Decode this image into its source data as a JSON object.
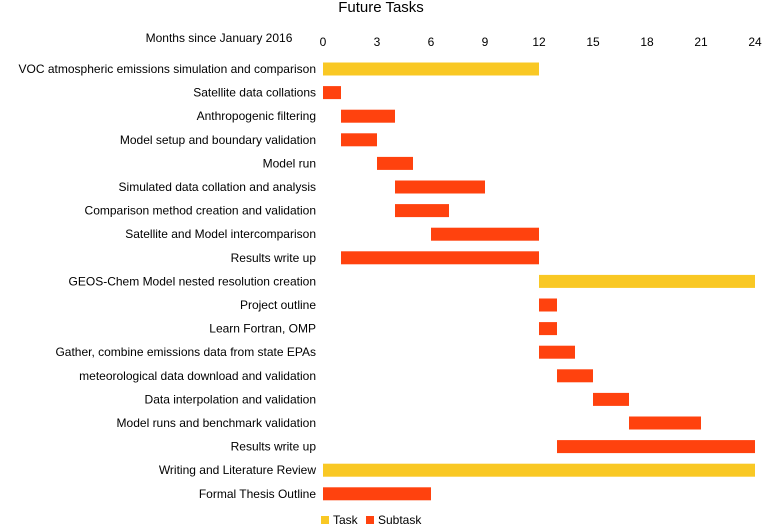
{
  "chart_data": {
    "type": "bar",
    "orientation": "horizontal-gantt",
    "title": "Future Tasks",
    "xlabel": "Months since January 2016",
    "xlim": [
      0,
      24
    ],
    "xticks": [
      0,
      3,
      6,
      9,
      12,
      15,
      18,
      21,
      24
    ],
    "tick_labels": [
      "0",
      "3",
      "6",
      "9",
      "12",
      "15",
      "18",
      "21",
      "24"
    ],
    "grid": false,
    "legend_position": "bottom",
    "series": [
      {
        "name": "Task",
        "color": "#f9c824"
      },
      {
        "name": "Subtask",
        "color": "#ff420e"
      }
    ],
    "tasks": [
      {
        "label": "VOC atmospheric emissions simulation and comparison",
        "start": 0,
        "end": 12,
        "series": "Task"
      },
      {
        "label": "Satellite data collations",
        "start": 0,
        "end": 1,
        "series": "Subtask"
      },
      {
        "label": "Anthropogenic filtering",
        "start": 1,
        "end": 4,
        "series": "Subtask"
      },
      {
        "label": "Model setup and boundary validation",
        "start": 1,
        "end": 3,
        "series": "Subtask"
      },
      {
        "label": "Model run",
        "start": 3,
        "end": 5,
        "series": "Subtask"
      },
      {
        "label": "Simulated data collation and analysis",
        "start": 4,
        "end": 9,
        "series": "Subtask"
      },
      {
        "label": "Comparison method creation and validation",
        "start": 4,
        "end": 7,
        "series": "Subtask"
      },
      {
        "label": "Satellite and Model intercomparison",
        "start": 6,
        "end": 12,
        "series": "Subtask"
      },
      {
        "label": "Results write up",
        "start": 1,
        "end": 12,
        "series": "Subtask"
      },
      {
        "label": "GEOS-Chem Model nested resolution creation",
        "start": 12,
        "end": 24,
        "series": "Task"
      },
      {
        "label": "Project outline",
        "start": 12,
        "end": 13,
        "series": "Subtask"
      },
      {
        "label": "Learn Fortran, OMP",
        "start": 12,
        "end": 13,
        "series": "Subtask"
      },
      {
        "label": "Gather, combine emissions data from state EPAs",
        "start": 12,
        "end": 14,
        "series": "Subtask"
      },
      {
        "label": "meteorological data download and validation",
        "start": 13,
        "end": 15,
        "series": "Subtask"
      },
      {
        "label": "Data interpolation and validation",
        "start": 15,
        "end": 17,
        "series": "Subtask"
      },
      {
        "label": "Model runs and benchmark validation",
        "start": 17,
        "end": 21,
        "series": "Subtask"
      },
      {
        "label": "Results write up",
        "start": 13,
        "end": 24,
        "series": "Subtask"
      },
      {
        "label": "Writing and Literature Review",
        "start": 0,
        "end": 24,
        "series": "Task"
      },
      {
        "label": "Formal Thesis Outline",
        "start": 0,
        "end": 6,
        "series": "Subtask"
      }
    ]
  }
}
